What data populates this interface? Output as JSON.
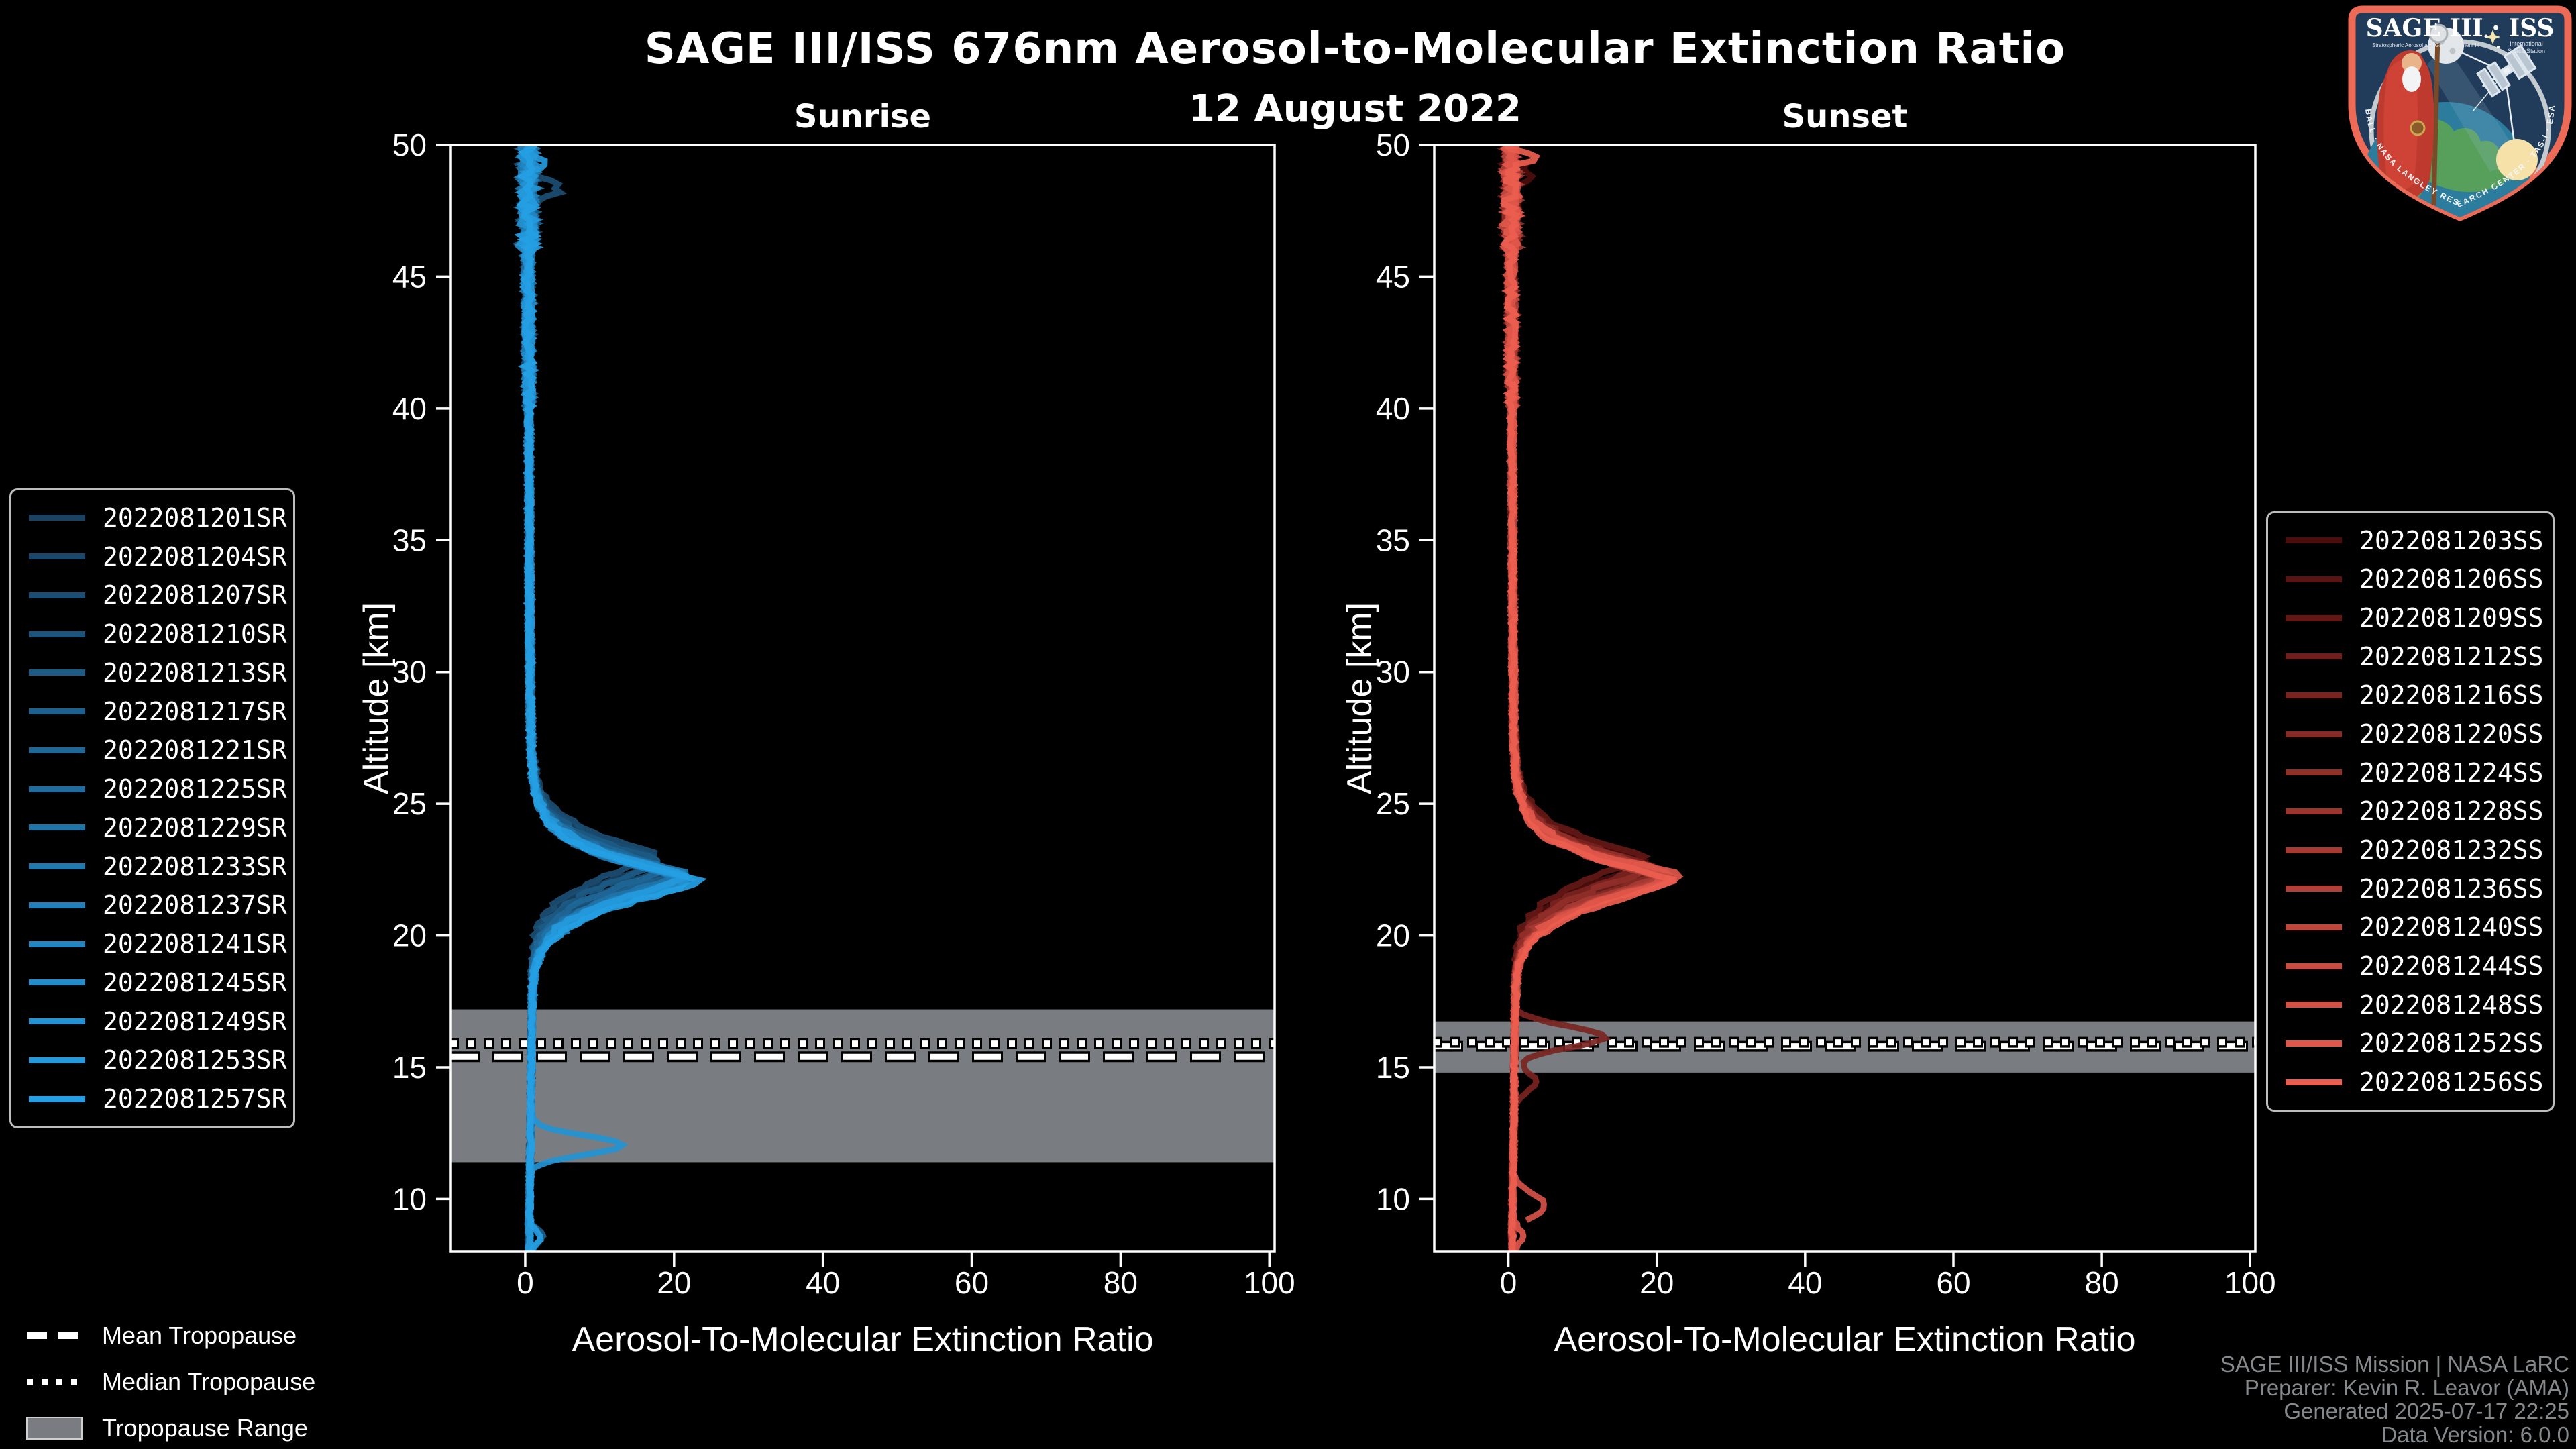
{
  "page": {
    "background": "#000000"
  },
  "header": {
    "title": "SAGE III/ISS 676nm Aerosol-to-Molecular Extinction Ratio",
    "date": "12 August 2022"
  },
  "styles": {
    "band_color": "#797d82",
    "axis_color": "#ffffff",
    "trop_line_color": "#ffffff",
    "sunrise_color_dark": "#194263",
    "sunrise_color_bright": "#259fe4",
    "sunset_color_dark": "#4d0d0d",
    "sunset_color_bright": "#eb5d4f"
  },
  "chart_data": [
    {
      "type": "line",
      "panel": "sunrise",
      "title": "Sunrise",
      "xlabel": "Aerosol-To-Molecular Extinction Ratio",
      "ylabel": "Altitude [km]",
      "xlim": [
        -10,
        100.7
      ],
      "ylim": [
        8,
        50
      ],
      "xticks": [
        0,
        20,
        40,
        60,
        80,
        100
      ],
      "yticks": [
        10,
        15,
        20,
        25,
        30,
        35,
        40,
        45,
        50
      ],
      "grid": false,
      "legend_position": "outside-left",
      "tropopause": {
        "mean_km": 15.4,
        "median_km": 15.9,
        "range_km": [
          11.4,
          17.2
        ]
      },
      "base_profile": [
        [
          50,
          0.4
        ],
        [
          49,
          0.3
        ],
        [
          48,
          0.45
        ],
        [
          47,
          0.35
        ],
        [
          46,
          0.4
        ],
        [
          45,
          0.35
        ],
        [
          44,
          0.4
        ],
        [
          42,
          0.45
        ],
        [
          40,
          0.5
        ],
        [
          38,
          0.5
        ],
        [
          36,
          0.55
        ],
        [
          34,
          0.55
        ],
        [
          32,
          0.6
        ],
        [
          30,
          0.65
        ],
        [
          28,
          0.7
        ],
        [
          27,
          0.8
        ],
        [
          26,
          1
        ],
        [
          25.5,
          1.3
        ],
        [
          25,
          1.8
        ],
        [
          24.5,
          2.6
        ],
        [
          24,
          4
        ],
        [
          23.5,
          6.5
        ],
        [
          23,
          10.5
        ],
        [
          22.7,
          14
        ],
        [
          22.4,
          18
        ],
        [
          22.2,
          20
        ],
        [
          22,
          19
        ],
        [
          21.7,
          16
        ],
        [
          21.4,
          12.5
        ],
        [
          21,
          9
        ],
        [
          20.6,
          6.2
        ],
        [
          20.2,
          4.2
        ],
        [
          19.8,
          2.9
        ],
        [
          19.4,
          2
        ],
        [
          19,
          1.5
        ],
        [
          18.5,
          1.15
        ],
        [
          18,
          1
        ],
        [
          17,
          0.9
        ],
        [
          16,
          0.85
        ],
        [
          15,
          0.8
        ],
        [
          14,
          0.8
        ],
        [
          13,
          0.75
        ],
        [
          12,
          0.7
        ],
        [
          11,
          0.65
        ],
        [
          10,
          0.6
        ],
        [
          9,
          0.5
        ],
        [
          8.5,
          0.55
        ],
        [
          8,
          0.5
        ]
      ],
      "series": [
        {
          "name": "2022081201SR",
          "color": "#194263",
          "peak_ratio": 18.0,
          "peak_alt_km": 22.9,
          "end_alt_km": 8.0,
          "spikes": []
        },
        {
          "name": "2022081204SR",
          "color": "#1a486c",
          "peak_ratio": 18.6,
          "peak_alt_km": 22.6,
          "end_alt_km": 8.0,
          "spikes": []
        },
        {
          "name": "2022081207SR",
          "color": "#1b4e74",
          "peak_ratio": 17.6,
          "peak_alt_km": 23.1,
          "end_alt_km": 8.2,
          "spikes": [
            [
              48.35,
              4.2,
              0.3
            ]
          ]
        },
        {
          "name": "2022081210SR",
          "color": "#1b557d",
          "peak_ratio": 19.4,
          "peak_alt_km": 22.5,
          "end_alt_km": 8.0,
          "spikes": []
        },
        {
          "name": "2022081213SR",
          "color": "#1c5b85",
          "peak_ratio": 18.2,
          "peak_alt_km": 22.8,
          "end_alt_km": 8.5,
          "spikes": []
        },
        {
          "name": "2022081217SR",
          "color": "#1d618e",
          "peak_ratio": 20.0,
          "peak_alt_km": 22.4,
          "end_alt_km": 8.0,
          "spikes": [
            [
              8.6,
              1.8,
              0.3
            ]
          ]
        },
        {
          "name": "2022081221SR",
          "color": "#1e6797",
          "peak_ratio": 19.0,
          "peak_alt_km": 22.6,
          "end_alt_km": 8.9,
          "spikes": []
        },
        {
          "name": "2022081225SR",
          "color": "#1f6d9f",
          "peak_ratio": 20.6,
          "peak_alt_km": 22.3,
          "end_alt_km": 8.0,
          "spikes": []
        },
        {
          "name": "2022081229SR",
          "color": "#1f74a8",
          "peak_ratio": 21.2,
          "peak_alt_km": 22.4,
          "end_alt_km": 8.0,
          "spikes": []
        },
        {
          "name": "2022081233SR",
          "color": "#207ab0",
          "peak_ratio": 20.2,
          "peak_alt_km": 22.2,
          "end_alt_km": 8.3,
          "spikes": []
        },
        {
          "name": "2022081237SR",
          "color": "#2180b9",
          "peak_ratio": 21.8,
          "peak_alt_km": 22.3,
          "end_alt_km": 8.0,
          "spikes": []
        },
        {
          "name": "2022081241SR",
          "color": "#2286c2",
          "peak_ratio": 22.4,
          "peak_alt_km": 22.1,
          "end_alt_km": 8.0,
          "spikes": []
        },
        {
          "name": "2022081245SR",
          "color": "#238cca",
          "peak_ratio": 21.0,
          "peak_alt_km": 22.2,
          "end_alt_km": 8.6,
          "spikes": []
        },
        {
          "name": "2022081249SR",
          "color": "#2393d3",
          "peak_ratio": 22.8,
          "peak_alt_km": 22.2,
          "end_alt_km": 8.0,
          "spikes": [
            [
              12.05,
              12.5,
              0.35
            ]
          ]
        },
        {
          "name": "2022081253SR",
          "color": "#2499db",
          "peak_ratio": 22.0,
          "peak_alt_km": 22.3,
          "end_alt_km": 8.0,
          "spikes": [
            [
              49.3,
              2.4,
              0.25
            ]
          ]
        },
        {
          "name": "2022081257SR",
          "color": "#259fe4",
          "peak_ratio": 23.4,
          "peak_alt_km": 22.1,
          "end_alt_km": 8.0,
          "spikes": [
            [
              8.55,
              1.5,
              0.3
            ]
          ]
        }
      ]
    },
    {
      "type": "line",
      "panel": "sunset",
      "title": "Sunset",
      "xlabel": "Aerosol-To-Molecular Extinction Ratio",
      "ylabel": "Altitude [km]",
      "xlim": [
        -10,
        100.7
      ],
      "ylim": [
        8,
        50
      ],
      "xticks": [
        0,
        20,
        40,
        60,
        80,
        100
      ],
      "yticks": [
        10,
        15,
        20,
        25,
        30,
        35,
        40,
        45,
        50
      ],
      "grid": false,
      "legend_position": "outside-right",
      "tropopause": {
        "mean_km": 15.8,
        "median_km": 15.95,
        "range_km": [
          14.8,
          16.74
        ]
      },
      "base_profile": [
        [
          50,
          0.4
        ],
        [
          49,
          0.3
        ],
        [
          48,
          0.45
        ],
        [
          47,
          0.35
        ],
        [
          46,
          0.4
        ],
        [
          45,
          0.35
        ],
        [
          44,
          0.4
        ],
        [
          42,
          0.45
        ],
        [
          40,
          0.5
        ],
        [
          38,
          0.5
        ],
        [
          36,
          0.55
        ],
        [
          34,
          0.55
        ],
        [
          32,
          0.6
        ],
        [
          30,
          0.65
        ],
        [
          28,
          0.7
        ],
        [
          27,
          0.8
        ],
        [
          26,
          1
        ],
        [
          25.5,
          1.3
        ],
        [
          25,
          1.8
        ],
        [
          24.5,
          2.6
        ],
        [
          24,
          4
        ],
        [
          23.5,
          6.5
        ],
        [
          23,
          10.5
        ],
        [
          22.7,
          14
        ],
        [
          22.4,
          18
        ],
        [
          22.2,
          20
        ],
        [
          22,
          19
        ],
        [
          21.7,
          16
        ],
        [
          21.4,
          12.5
        ],
        [
          21,
          9
        ],
        [
          20.6,
          6.2
        ],
        [
          20.2,
          4.2
        ],
        [
          19.8,
          2.9
        ],
        [
          19.4,
          2
        ],
        [
          19,
          1.5
        ],
        [
          18.5,
          1.15
        ],
        [
          18,
          1
        ],
        [
          17,
          0.9
        ],
        [
          16,
          0.85
        ],
        [
          15,
          0.8
        ],
        [
          14,
          0.8
        ],
        [
          13,
          0.75
        ],
        [
          12,
          0.7
        ],
        [
          11,
          0.65
        ],
        [
          10,
          0.6
        ],
        [
          9,
          0.5
        ],
        [
          8.5,
          0.55
        ],
        [
          8,
          0.5
        ]
      ],
      "series": [
        {
          "name": "2022081203SS",
          "color": "#4d0d0d",
          "peak_ratio": 18.2,
          "peak_alt_km": 22.8,
          "end_alt_km": 8.0,
          "spikes": [
            [
              49.0,
              2.6,
              0.3
            ]
          ]
        },
        {
          "name": "2022081206SS",
          "color": "#581312",
          "peak_ratio": 18.8,
          "peak_alt_km": 22.6,
          "end_alt_km": 8.2,
          "spikes": []
        },
        {
          "name": "2022081209SS",
          "color": "#641816",
          "peak_ratio": 17.8,
          "peak_alt_km": 23.0,
          "end_alt_km": 8.0,
          "spikes": []
        },
        {
          "name": "2022081212SS",
          "color": "#6f1e1b",
          "peak_ratio": 19.6,
          "peak_alt_km": 22.5,
          "end_alt_km": 8.0,
          "spikes": []
        },
        {
          "name": "2022081216SS",
          "color": "#7a2420",
          "peak_ratio": 18.4,
          "peak_alt_km": 22.7,
          "end_alt_km": 13.4,
          "spikes": [
            [
              16.15,
              12.2,
              0.4
            ],
            [
              14.45,
              2.8,
              0.4
            ]
          ]
        },
        {
          "name": "2022081220SS",
          "color": "#852a25",
          "peak_ratio": 20.2,
          "peak_alt_km": 22.4,
          "end_alt_km": 8.0,
          "spikes": []
        },
        {
          "name": "2022081224SS",
          "color": "#912f29",
          "peak_ratio": 19.2,
          "peak_alt_km": 22.6,
          "end_alt_km": 8.8,
          "spikes": []
        },
        {
          "name": "2022081228SS",
          "color": "#9c352e",
          "peak_ratio": 20.8,
          "peak_alt_km": 22.3,
          "end_alt_km": 8.0,
          "spikes": []
        },
        {
          "name": "2022081232SS",
          "color": "#a73b33",
          "peak_ratio": 21.4,
          "peak_alt_km": 22.4,
          "end_alt_km": 8.0,
          "spikes": []
        },
        {
          "name": "2022081236SS",
          "color": "#b24038",
          "peak_ratio": 20.4,
          "peak_alt_km": 22.2,
          "end_alt_km": 8.4,
          "spikes": []
        },
        {
          "name": "2022081240SS",
          "color": "#be463c",
          "peak_ratio": 22.0,
          "peak_alt_km": 22.3,
          "end_alt_km": 8.0,
          "spikes": []
        },
        {
          "name": "2022081244SS",
          "color": "#c94c41",
          "peak_ratio": 22.6,
          "peak_alt_km": 22.2,
          "end_alt_km": 8.0,
          "spikes": []
        },
        {
          "name": "2022081248SS",
          "color": "#d45146",
          "peak_ratio": 21.2,
          "peak_alt_km": 22.2,
          "end_alt_km": 9.2,
          "spikes": [
            [
              9.75,
              4.4,
              0.45
            ]
          ]
        },
        {
          "name": "2022081252SS",
          "color": "#e0574a",
          "peak_ratio": 23.2,
          "peak_alt_km": 22.3,
          "end_alt_km": 8.0,
          "spikes": [
            [
              8.6,
              1.5,
              0.3
            ]
          ]
        },
        {
          "name": "2022081256SS",
          "color": "#eb5d4f",
          "peak_ratio": 22.2,
          "peak_alt_km": 22.1,
          "end_alt_km": 8.0,
          "spikes": [
            [
              49.5,
              2.5,
              0.2
            ]
          ]
        }
      ]
    }
  ],
  "tropopause_legend": {
    "items": [
      {
        "label": "Mean Tropopause",
        "swatch": "dashed-line"
      },
      {
        "label": "Median Tropopause",
        "swatch": "dotted-line"
      },
      {
        "label": "Tropopause Range",
        "swatch": "filled-band"
      }
    ]
  },
  "footer": {
    "color": "#86898c",
    "lines": [
      "SAGE III/ISS Mission | NASA LaRC",
      "Preparer: Kevin R. Leavor (AMA)",
      "Generated 2025-07-17 22:25",
      "Data Version: 6.0.0"
    ]
  },
  "logo": {
    "title": "SAGE III · ISS",
    "subtitle_left": "Stratospheric Aerosol and Gas Experiment III",
    "subtitle_right_line1": "International",
    "subtitle_right_line2": "Space Station",
    "border_text": "BALL · NASA LANGLEY RESEARCH CENTER · TAS-I · ESA",
    "border_color": "#ed6a57",
    "field_color": "#203c5a"
  }
}
